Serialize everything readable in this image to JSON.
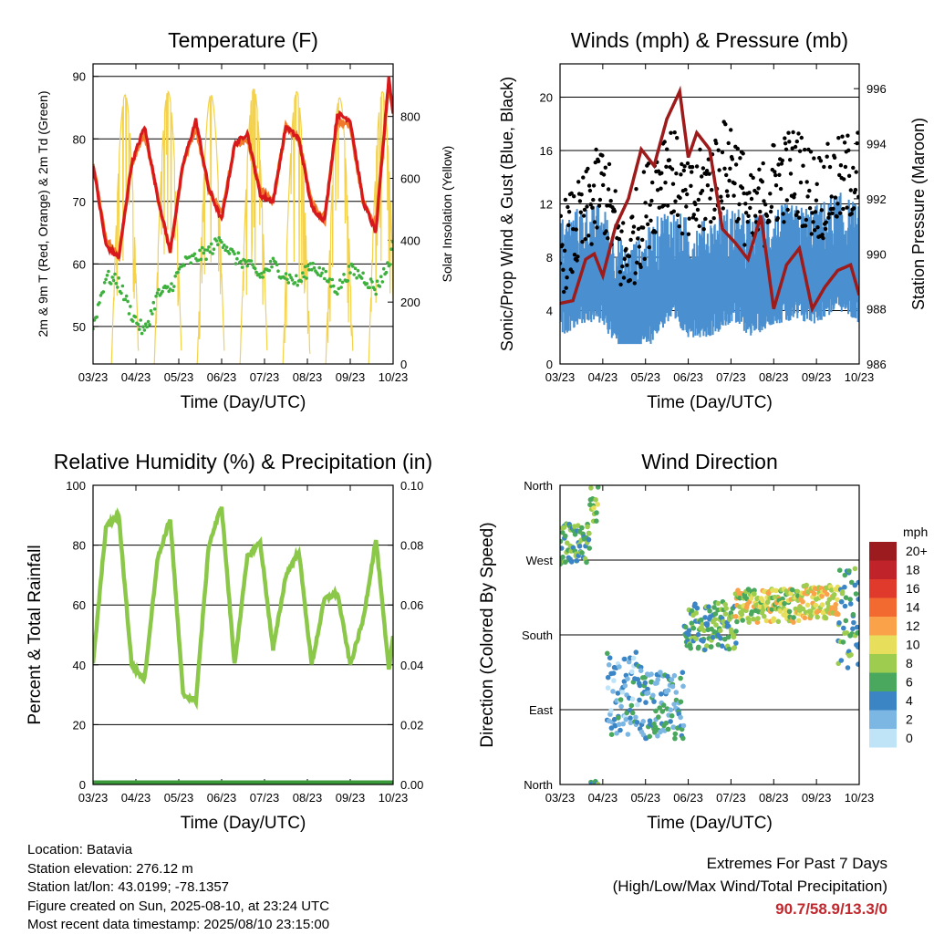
{
  "panels": {
    "temperature": {
      "title": "Temperature (F)",
      "ylabel_left": "2m & 9m T (Red, Orange) & 2m Td (Green)",
      "ylabel_right": "Solar Insolation (Yellow)",
      "xlabel": "Time (Day/UTC)"
    },
    "winds": {
      "title": "Winds (mph) & Pressure (mb)",
      "ylabel_left": "Sonic/Prop Wind & Gust (Blue, Black)",
      "ylabel_right": "Station Pressure (Maroon)",
      "xlabel": "Time (Day/UTC)"
    },
    "humidity": {
      "title": "Relative Humidity (%) & Precipitation (in)",
      "ylabel_left": "Percent & Total Rainfall",
      "xlabel": "Time (Day/UTC)"
    },
    "direction": {
      "title": "Wind Direction",
      "ylabel_left": "Direction (Colored By Speed)",
      "xlabel": "Time (Day/UTC)",
      "legend_title": "mph",
      "legend_labels": [
        "20+",
        "18",
        "16",
        "14",
        "12",
        "10",
        "8",
        "6",
        "4",
        "2",
        "0"
      ],
      "legend_colors": [
        "#9b1b1e",
        "#c0232a",
        "#e03a2c",
        "#f26a30",
        "#f9a24a",
        "#e7df5b",
        "#9dcc4f",
        "#4aa85e",
        "#3c85c4",
        "#7cb7e3",
        "#bfe3f7"
      ]
    }
  },
  "info": {
    "location": "Location: Batavia",
    "elevation": "Station elevation: 276.12 m",
    "latlon": "Station lat/lon: 43.0199; -78.1357",
    "created": "Figure created on Sun, 2025-08-10, at 23:24 UTC",
    "recent": "Most recent data timestamp: 2025/08/10 23:15:00"
  },
  "extremes": {
    "title": "Extremes For Past 7 Days",
    "subtitle": "(High/Low/Max Wind/Total Precipitation)",
    "values": "90.7/58.9/13.3/0"
  },
  "chart_data": [
    {
      "type": "line",
      "title": "Temperature (F)",
      "xlabel": "Time (Day/UTC)",
      "x_ticks": [
        "03/23",
        "04/23",
        "05/23",
        "06/23",
        "07/23",
        "08/23",
        "09/23",
        "10/23"
      ],
      "ylim": [
        44,
        92
      ],
      "y_ticks": [
        50,
        60,
        70,
        80,
        90
      ],
      "y2lim": [
        0,
        970
      ],
      "y2_ticks": [
        0,
        200,
        400,
        600,
        800
      ],
      "series": [
        {
          "name": "2m T",
          "color": "#d7191c",
          "x": [
            0,
            0.3,
            0.6,
            0.9,
            1.2,
            1.5,
            1.8,
            2.1,
            2.4,
            2.7,
            3.0,
            3.3,
            3.6,
            3.9,
            4.2,
            4.5,
            4.8,
            5.1,
            5.4,
            5.7,
            6.0,
            6.3,
            6.6,
            6.9,
            7.0
          ],
          "values": [
            76,
            63,
            61,
            76,
            82,
            71,
            62,
            76,
            83,
            72,
            67,
            79,
            81,
            71,
            70,
            82,
            80,
            69,
            67,
            84,
            83,
            70,
            65,
            90,
            84
          ]
        },
        {
          "name": "9m T",
          "color": "#f07a2b",
          "x": [
            0,
            0.3,
            0.6,
            0.9,
            1.2,
            1.5,
            1.8,
            2.1,
            2.4,
            2.7,
            3.0,
            3.3,
            3.6,
            3.9,
            4.2,
            4.5,
            4.8,
            5.1,
            5.4,
            5.7,
            6.0,
            6.3,
            6.6,
            6.9,
            7.0
          ],
          "values": [
            76,
            64,
            61,
            76,
            81,
            71,
            62,
            76,
            82,
            72,
            68,
            79,
            80,
            72,
            70,
            82,
            80,
            70,
            67,
            83,
            82,
            70,
            66,
            89,
            84
          ]
        },
        {
          "name": "2m Td",
          "color": "#3eb03e",
          "x": [
            0,
            0.3,
            0.6,
            0.9,
            1.2,
            1.5,
            1.8,
            2.1,
            2.4,
            2.7,
            3.0,
            3.3,
            3.6,
            3.9,
            4.2,
            4.5,
            4.8,
            5.1,
            5.4,
            5.7,
            6.0,
            6.3,
            6.6,
            6.9,
            7.0
          ],
          "values": [
            50,
            58,
            57,
            52,
            49,
            55,
            56,
            60,
            61,
            62,
            64,
            61,
            60,
            58,
            60,
            58,
            57,
            60,
            58,
            56,
            59,
            58,
            56,
            60,
            63
          ]
        },
        {
          "name": "Solar Insolation",
          "color": "#f4d24c",
          "axis": "right",
          "daily_peaks": [
            870,
            880,
            870,
            890,
            880,
            860,
            880,
            870
          ]
        }
      ]
    },
    {
      "type": "line",
      "title": "Winds (mph) & Pressure (mb)",
      "xlabel": "Time (Day/UTC)",
      "x_ticks": [
        "03/23",
        "04/23",
        "05/23",
        "06/23",
        "07/23",
        "08/23",
        "09/23",
        "10/23"
      ],
      "ylim": [
        0,
        22.5
      ],
      "y_ticks": [
        0,
        4,
        8,
        12,
        16,
        20
      ],
      "y2lim": [
        986,
        996.9
      ],
      "y2_ticks": [
        986,
        988,
        990,
        992,
        994,
        996
      ],
      "series": [
        {
          "name": "Sonic/Prop Wind",
          "color": "#4a90d0",
          "x": [
            0,
            0.5,
            1.0,
            1.5,
            2.0,
            2.5,
            3.0,
            3.5,
            4.0,
            4.5,
            5.0,
            5.5,
            6.0,
            6.5,
            7.0
          ],
          "values": [
            6,
            7,
            7,
            4,
            5,
            7,
            6,
            6,
            7,
            6,
            7,
            7,
            7,
            8,
            7
          ]
        },
        {
          "name": "Gust",
          "color": "#000000",
          "x": [
            0,
            0.5,
            1.0,
            1.5,
            2.0,
            2.5,
            3.0,
            3.5,
            4.0,
            4.5,
            5.0,
            5.5,
            6.0,
            6.5,
            7.0
          ],
          "values": [
            9,
            11,
            14,
            8,
            12,
            16,
            12,
            14,
            16,
            11,
            14,
            15,
            13,
            14,
            15
          ]
        },
        {
          "name": "Station Pressure",
          "color": "#9e1b1b",
          "axis": "right",
          "x": [
            0,
            0.3,
            0.6,
            0.8,
            1.0,
            1.3,
            1.6,
            1.9,
            2.2,
            2.5,
            2.8,
            3.0,
            3.2,
            3.5,
            3.8,
            4.1,
            4.4,
            4.7,
            5.0,
            5.3,
            5.6,
            5.9,
            6.2,
            6.5,
            6.8,
            7.0
          ],
          "values": [
            988.2,
            988.3,
            989.8,
            990,
            989.2,
            991,
            992,
            993.8,
            993.2,
            994.9,
            995.9,
            993.5,
            994.4,
            993.8,
            990.9,
            990.4,
            989.8,
            991.4,
            988,
            989.6,
            990.2,
            988,
            988.8,
            989.4,
            989.6,
            988.5
          ]
        }
      ]
    },
    {
      "type": "line",
      "title": "Relative Humidity (%) & Precipitation (in)",
      "xlabel": "Time (Day/UTC)",
      "x_ticks": [
        "03/23",
        "04/23",
        "05/23",
        "06/23",
        "07/23",
        "08/23",
        "09/23",
        "10/23"
      ],
      "ylim": [
        0,
        100
      ],
      "y_ticks": [
        0,
        20,
        40,
        60,
        80,
        100
      ],
      "y2lim": [
        0,
        0.1
      ],
      "y2_ticks": [
        0.0,
        0.02,
        0.04,
        0.06,
        0.08,
        0.1
      ],
      "series": [
        {
          "name": "Relative Humidity",
          "color": "#8bc84a",
          "x": [
            0,
            0.3,
            0.6,
            0.9,
            1.2,
            1.5,
            1.8,
            2.1,
            2.4,
            2.7,
            3.0,
            3.3,
            3.6,
            3.9,
            4.2,
            4.5,
            4.8,
            5.1,
            5.4,
            5.7,
            6.0,
            6.3,
            6.6,
            6.9,
            7.0
          ],
          "values": [
            40,
            86,
            90,
            40,
            35,
            75,
            89,
            30,
            28,
            80,
            93,
            40,
            76,
            81,
            45,
            70,
            78,
            40,
            62,
            64,
            40,
            55,
            82,
            38,
            50
          ]
        },
        {
          "name": "Total Rainfall",
          "color": "#3a9a3a",
          "axis": "right",
          "x": [
            0,
            7
          ],
          "values": [
            0,
            0
          ]
        }
      ]
    },
    {
      "type": "scatter",
      "title": "Wind Direction",
      "xlabel": "Time (Day/UTC)",
      "x_ticks": [
        "03/23",
        "04/23",
        "05/23",
        "06/23",
        "07/23",
        "08/23",
        "09/23",
        "10/23"
      ],
      "y_ticks": [
        "North",
        "East",
        "South",
        "West",
        "North"
      ],
      "ylim": [
        0,
        360
      ],
      "color_by": "speed (mph)",
      "clusters": [
        {
          "x_start": 0,
          "x_end": 0.7,
          "dir_center": 290,
          "spread": 25,
          "speed": 6
        },
        {
          "x_start": 0.7,
          "x_end": 0.9,
          "dir_center": 340,
          "spread": 25,
          "speed": 7
        },
        {
          "x_start": 1.1,
          "x_end": 1.9,
          "dir_center": 110,
          "spread": 50,
          "speed": 3
        },
        {
          "x_start": 1.9,
          "x_end": 2.9,
          "dir_center": 95,
          "spread": 40,
          "speed": 4
        },
        {
          "x_start": 2.9,
          "x_end": 4.1,
          "dir_center": 190,
          "spread": 30,
          "speed": 6
        },
        {
          "x_start": 4.1,
          "x_end": 5.6,
          "dir_center": 215,
          "spread": 20,
          "speed": 9
        },
        {
          "x_start": 5.6,
          "x_end": 6.5,
          "dir_center": 220,
          "spread": 20,
          "speed": 10
        },
        {
          "x_start": 6.5,
          "x_end": 7.0,
          "dir_center": 200,
          "spread": 60,
          "speed": 6
        }
      ]
    }
  ]
}
